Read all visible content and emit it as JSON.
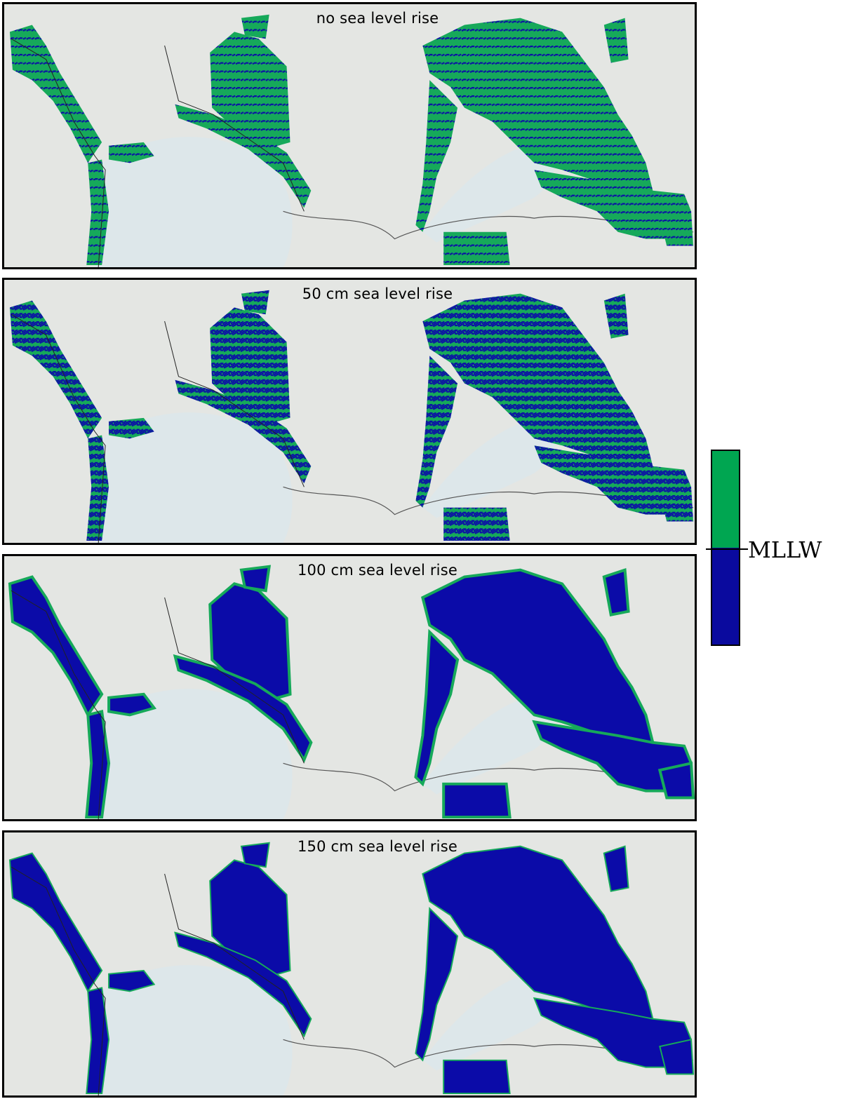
{
  "panels": [
    {
      "title": "no sea level rise",
      "inundation": 0.15
    },
    {
      "title": "50 cm sea level rise",
      "inundation": 0.45
    },
    {
      "title": "100 cm sea level rise",
      "inundation": 0.75
    },
    {
      "title": "150 cm sea level rise",
      "inundation": 0.95
    }
  ],
  "legend": {
    "label": "MLLW",
    "upper_color": "#00a651",
    "lower_color": "#0a0a9e",
    "upper_meaning": "above MLLW",
    "lower_meaning": "below MLLW"
  },
  "colors": {
    "marsh_green": "#16a95a",
    "water_blue": "#0b0ba8",
    "bay_water": "#dde7ea",
    "land": "#e4e6e3"
  }
}
